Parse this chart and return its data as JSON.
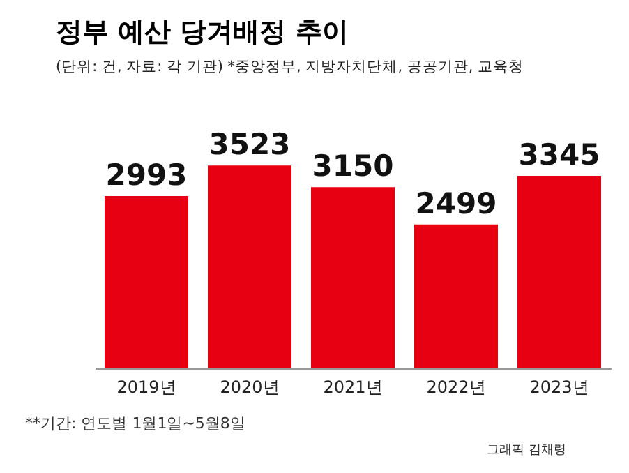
{
  "chart_data": {
    "type": "bar",
    "title": "정부 예산 당겨배정 추이",
    "subtitle": "(단위: 건, 자료: 각 기관) *중앙정부, 지방자치단체, 공공기관, 교육청",
    "categories": [
      "2019년",
      "2020년",
      "2021년",
      "2022년",
      "2023년"
    ],
    "values": [
      2993,
      3523,
      3150,
      2499,
      3345
    ],
    "color": "#e60012",
    "data_labels": true,
    "tick_labels": "x",
    "annotations": [
      "**기간: 연도별 1월1일~5월8일",
      "그래픽 김채령"
    ]
  }
}
